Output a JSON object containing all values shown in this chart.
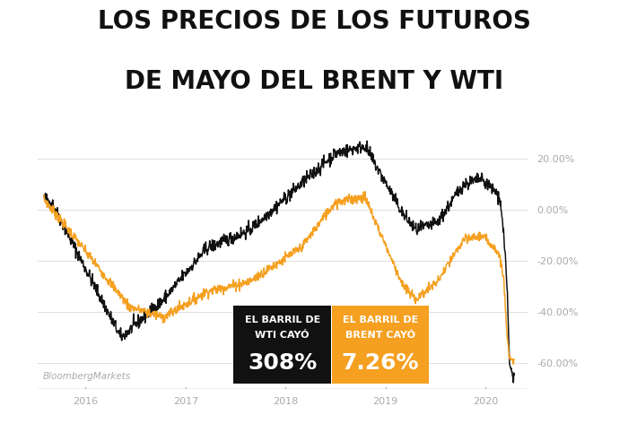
{
  "title_line1": "LOS PRECIOS DE LOS FUTUROS",
  "title_line2": "DE MAYO DEL BRENT Y WTI",
  "wti_label_line1": "EL BARRIL DE",
  "wti_label_line2": "WTI CAYÓ",
  "wti_value": "308%",
  "brent_label_line1": "EL BARRIL DE",
  "brent_label_line2": "BRENT CAYÓ",
  "brent_value": "7.26%",
  "wti_color": "#111111",
  "brent_color": "#F5A020",
  "wti_box_color": "#111111",
  "brent_box_color": "#F5A020",
  "bg_color": "#ffffff",
  "axis_label_color": "#aaaaaa",
  "grid_color": "#dddddd",
  "watermark": "BloombergMarkets",
  "ylim": [
    -70,
    28
  ],
  "yticks": [
    20,
    0,
    -20,
    -40,
    -60
  ],
  "ytick_labels": [
    "20.00%",
    "0.00%",
    "-20.00%",
    "-40.00%",
    "-60.00%"
  ],
  "xtick_labels": [
    "2016",
    "2017",
    "2018",
    "2019",
    "2020"
  ],
  "title_fontsize": 20,
  "tick_fontsize": 8
}
